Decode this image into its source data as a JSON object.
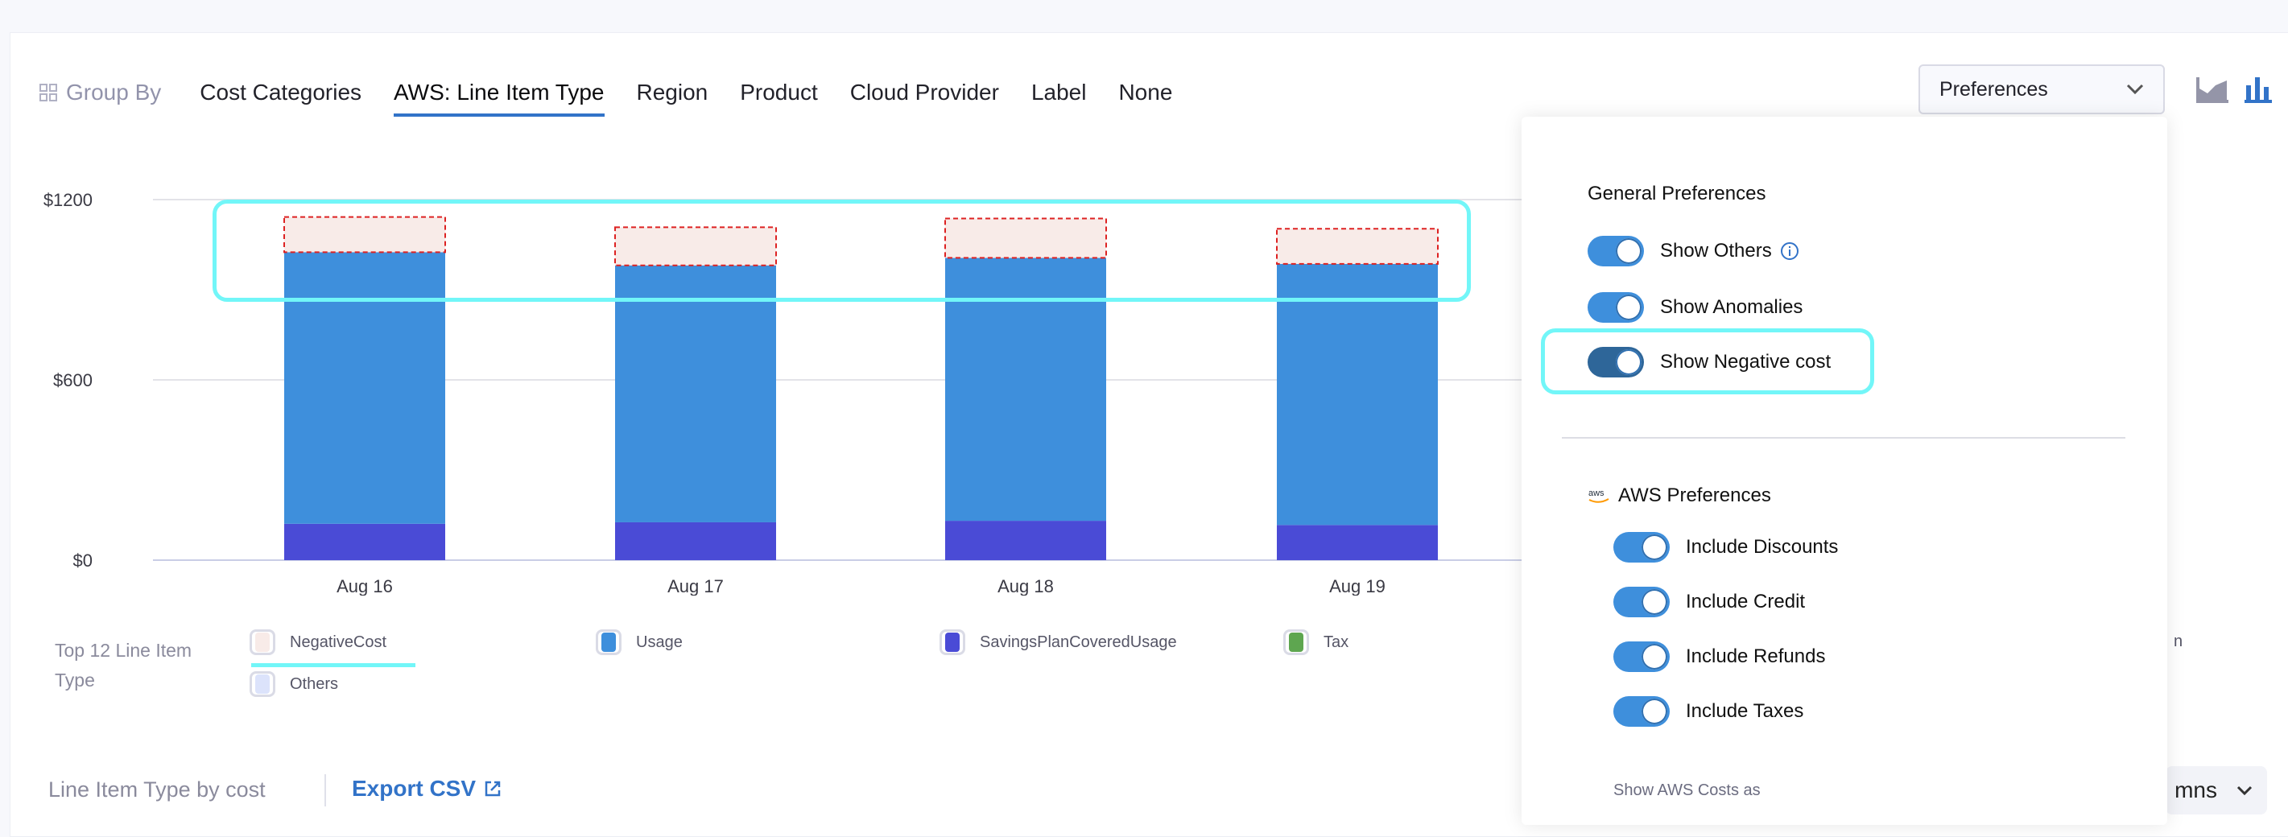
{
  "group_by": {
    "label": "Group By",
    "tabs": [
      "Cost Categories",
      "AWS: Line Item Type",
      "Region",
      "Product",
      "Cloud Provider",
      "Label",
      "None"
    ],
    "active_tab": "AWS: Line Item Type"
  },
  "preferences_dropdown": {
    "label": "Preferences"
  },
  "chart_type_icons": [
    "area-chart-icon",
    "bar-chart-icon"
  ],
  "preferences_panel": {
    "general_title": "General Preferences",
    "general": [
      {
        "label": "Show Others",
        "on": true,
        "info": true
      },
      {
        "label": "Show Anomalies",
        "on": true
      },
      {
        "label": "Show Negative cost",
        "on": true
      }
    ],
    "aws_title": "AWS Preferences",
    "aws": [
      {
        "label": "Include Discounts",
        "on": true
      },
      {
        "label": "Include Credit",
        "on": true
      },
      {
        "label": "Include Refunds",
        "on": true
      },
      {
        "label": "Include Taxes",
        "on": true
      }
    ],
    "show_costs_as": "Show AWS Costs as"
  },
  "chart_data": {
    "type": "bar",
    "stacked": true,
    "categories": [
      "Aug 16",
      "Aug 17",
      "Aug 18",
      "Aug 19"
    ],
    "series": [
      {
        "name": "SavingsPlanCoveredUsage",
        "values": [
          121,
          126,
          131,
          117
        ],
        "color": "#4a4bd6"
      },
      {
        "name": "Usage",
        "values": [
          904,
          855,
          875,
          869
        ],
        "color": "#3e8fdc"
      },
      {
        "name": "NegativeCost",
        "values": [
          117,
          127,
          131,
          117
        ],
        "color": "#f8ebe8"
      }
    ],
    "yticks": [
      "$0",
      "$600",
      "$1200"
    ],
    "ylim": [
      0,
      1200
    ],
    "grid": true
  },
  "legend": {
    "title": "Top 12 Line Item Type",
    "items": [
      {
        "label": "NegativeCost",
        "color": "#f8ebe8"
      },
      {
        "label": "Usage",
        "color": "#3e8fdc"
      },
      {
        "label": "SavingsPlanCoveredUsage",
        "color": "#4a4bd6"
      },
      {
        "label": "Tax",
        "color": "#5ea650"
      },
      {
        "label": "Others",
        "color": "#dce3fb"
      }
    ],
    "overflow_fragment": "n"
  },
  "bottom": {
    "title": "Line Item Type by cost",
    "export": "Export CSV",
    "columns_fragment": "mns"
  }
}
